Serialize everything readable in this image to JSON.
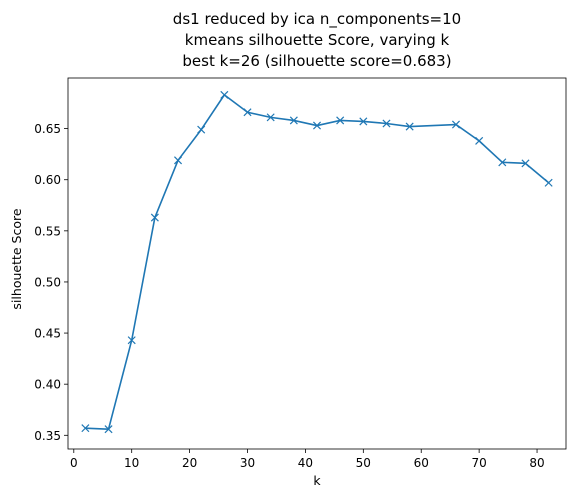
{
  "chart_data": {
    "type": "line",
    "title_lines": [
      "ds1 reduced by ica n_components=10",
      "kmeans silhouette Score, varying k",
      "best k=26 (silhouette score=0.683)"
    ],
    "xlabel": "k",
    "ylabel": "silhouette Score",
    "xlim": [
      -1,
      85
    ],
    "ylim": [
      0.3366,
      0.6995
    ],
    "xticks": [
      0,
      10,
      20,
      30,
      40,
      50,
      60,
      70,
      80
    ],
    "yticks": [
      0.35,
      0.4,
      0.45,
      0.5,
      0.55,
      0.6,
      0.65
    ],
    "ytick_labels": [
      "0.35",
      "0.40",
      "0.45",
      "0.50",
      "0.55",
      "0.60",
      "0.65"
    ],
    "marker": "x",
    "line_color": "#1f77b4",
    "series": [
      {
        "x": [
          2,
          6,
          10,
          14,
          18,
          22,
          26,
          30,
          34,
          38,
          42,
          46,
          50,
          54,
          58,
          66,
          70,
          74,
          78,
          82
        ],
        "values": [
          0.357,
          0.356,
          0.443,
          0.563,
          0.619,
          0.649,
          0.683,
          0.666,
          0.661,
          0.658,
          0.653,
          0.658,
          0.657,
          0.655,
          0.652,
          0.654,
          0.638,
          0.617,
          0.616,
          0.597
        ]
      }
    ]
  }
}
